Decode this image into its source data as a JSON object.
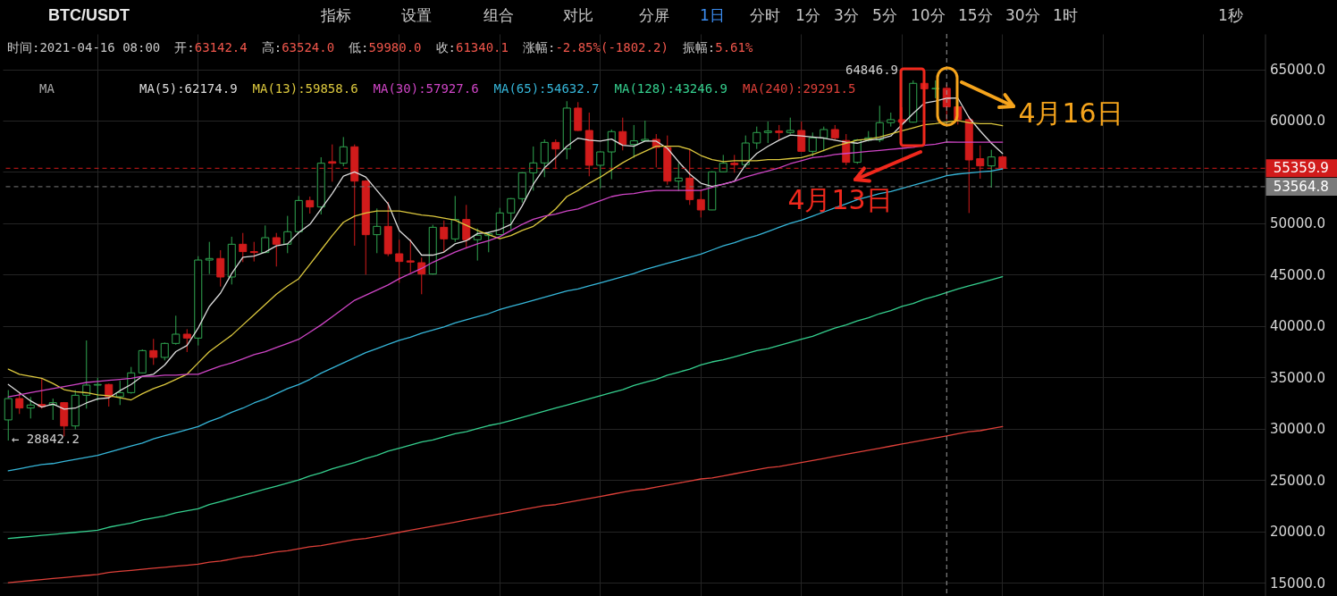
{
  "chart_data": {
    "type": "candlestick",
    "title": "BTC/USDT",
    "categories": [
      null,
      null,
      null,
      null,
      null,
      null,
      null,
      null,
      null,
      null,
      null,
      null,
      null,
      null,
      null,
      null,
      null,
      null,
      null,
      null,
      null,
      null,
      null,
      null,
      null,
      null,
      null,
      null,
      null,
      null,
      null,
      null,
      null,
      null,
      null,
      null,
      null,
      null,
      null,
      null,
      null,
      null,
      null,
      null,
      null,
      null,
      null,
      null,
      null,
      null,
      null,
      null,
      null,
      null,
      null,
      null,
      null,
      null,
      null,
      null,
      null,
      null,
      null,
      null,
      null,
      null,
      null,
      null,
      null,
      null,
      null,
      null,
      null,
      null,
      null,
      null,
      null,
      null,
      null,
      null,
      null,
      null,
      null,
      null,
      null,
      null,
      null,
      null,
      null,
      null,
      null,
      null,
      null,
      null,
      null,
      null,
      null,
      null,
      null,
      null,
      null,
      null,
      null,
      null,
      null,
      null,
      null,
      null,
      null,
      null,
      null,
      null,
      null
    ],
    "ohlc": [
      [
        30850,
        33750,
        28842.2,
        32930
      ],
      [
        32930,
        33510,
        31430,
        32010
      ],
      [
        32010,
        33080,
        30990,
        32300
      ],
      [
        32350,
        34850,
        31950,
        32150
      ],
      [
        32300,
        32930,
        30850,
        32530
      ],
      [
        32530,
        32590,
        29250,
        30260
      ],
      [
        30260,
        33750,
        29920,
        33250
      ],
      [
        33250,
        38590,
        31950,
        34240
      ],
      [
        34240,
        34960,
        32730,
        34300
      ],
      [
        34300,
        34380,
        32150,
        33110
      ],
      [
        33110,
        34670,
        32300,
        33510
      ],
      [
        33510,
        36010,
        33400,
        35430
      ],
      [
        35430,
        37720,
        35370,
        37600
      ],
      [
        37600,
        38740,
        36210,
        36940
      ],
      [
        36940,
        38390,
        36650,
        38300
      ],
      [
        38300,
        41000,
        38180,
        39200
      ],
      [
        39200,
        39690,
        37460,
        38820
      ],
      [
        38820,
        46800,
        38100,
        46420
      ],
      [
        46420,
        48190,
        45060,
        46570
      ],
      [
        46570,
        47380,
        43840,
        44770
      ],
      [
        44770,
        48690,
        44040,
        47960
      ],
      [
        47960,
        49060,
        46220,
        47240
      ],
      [
        47240,
        48190,
        46280,
        47150
      ],
      [
        47150,
        49790,
        47090,
        48600
      ],
      [
        48600,
        49060,
        45790,
        47960
      ],
      [
        47960,
        50720,
        47090,
        49180
      ],
      [
        49180,
        52660,
        49060,
        52220
      ],
      [
        52220,
        52600,
        50950,
        51590
      ],
      [
        51590,
        56430,
        50860,
        55850
      ],
      [
        56000,
        57680,
        54050,
        55850
      ],
      [
        55850,
        58400,
        55560,
        57450
      ],
      [
        57450,
        57680,
        47820,
        54110
      ],
      [
        54110,
        54200,
        45000,
        48890
      ],
      [
        48890,
        51440,
        47090,
        49700
      ],
      [
        49700,
        52080,
        46800,
        47030
      ],
      [
        47030,
        48400,
        44190,
        46280
      ],
      [
        46340,
        48450,
        45200,
        46220
      ],
      [
        46160,
        46660,
        43090,
        45060
      ],
      [
        45060,
        49850,
        45000,
        49610
      ],
      [
        49610,
        50280,
        47150,
        48480
      ],
      [
        48480,
        52660,
        48190,
        50370
      ],
      [
        50370,
        51790,
        47530,
        48400
      ],
      [
        48400,
        49500,
        46370,
        48830
      ],
      [
        48800,
        49180,
        47180,
        48980
      ],
      [
        48900,
        51500,
        48830,
        51010
      ],
      [
        51010,
        52460,
        49410,
        52400
      ],
      [
        52400,
        54980,
        52020,
        54920
      ],
      [
        54920,
        57480,
        53180,
        55880
      ],
      [
        55880,
        58170,
        54490,
        57880
      ],
      [
        57880,
        58170,
        55270,
        57240
      ],
      [
        57240,
        61890,
        56230,
        61220
      ],
      [
        61220,
        61800,
        58980,
        59040
      ],
      [
        59040,
        60780,
        54580,
        55650
      ],
      [
        55650,
        57000,
        53410,
        56950
      ],
      [
        56950,
        59130,
        54290,
        58930
      ],
      [
        58930,
        60290,
        57100,
        57680
      ],
      [
        57680,
        59570,
        56370,
        58030
      ],
      [
        58030,
        60000,
        57970,
        58170
      ],
      [
        58170,
        58690,
        55450,
        57390
      ],
      [
        57390,
        58550,
        53760,
        54110
      ],
      [
        54110,
        55850,
        53120,
        54400
      ],
      [
        54400,
        57240,
        51790,
        52310
      ],
      [
        52310,
        53240,
        50570,
        51300
      ],
      [
        51300,
        55070,
        51280,
        55010
      ],
      [
        55010,
        56660,
        54980,
        55850
      ],
      [
        55850,
        56660,
        54920,
        55710
      ],
      [
        55710,
        58550,
        55450,
        57820
      ],
      [
        57820,
        59420,
        57240,
        58840
      ],
      [
        58840,
        59910,
        57820,
        58980
      ],
      [
        58980,
        59570,
        58060,
        58840
      ],
      [
        58840,
        60290,
        58690,
        59040
      ],
      [
        59040,
        59910,
        56950,
        57010
      ],
      [
        57010,
        58840,
        56520,
        58320
      ],
      [
        58320,
        59420,
        57010,
        59130
      ],
      [
        59130,
        59570,
        58110,
        58320
      ],
      [
        58060,
        58690,
        55650,
        55940
      ],
      [
        55940,
        58200,
        55790,
        58110
      ],
      [
        58110,
        58980,
        57970,
        58320
      ],
      [
        58120,
        61450,
        57900,
        59800
      ],
      [
        59800,
        60780,
        59420,
        60090
      ],
      [
        60090,
        61300,
        59400,
        59850
      ],
      [
        59850,
        63920,
        59800,
        63630
      ],
      [
        63630,
        64846.9,
        61300,
        63100
      ],
      [
        63100,
        63920,
        62180,
        63140
      ],
      [
        63142.4,
        63524.0,
        59980.0,
        61340.1
      ],
      [
        61340,
        61500,
        59620,
        60090
      ],
      [
        60090,
        60440,
        51000,
        56170
      ],
      [
        56290,
        57590,
        54340,
        55590
      ],
      [
        55590,
        57160,
        53470,
        56460
      ],
      [
        56460,
        56600,
        55200,
        55359.9
      ],
      null,
      null,
      null,
      null,
      null,
      null,
      null,
      null,
      null,
      null,
      null,
      null,
      null,
      null,
      null,
      null,
      null,
      null,
      null,
      null,
      null,
      null,
      null
    ],
    "colors": [
      "#30a651",
      "#d11b1b",
      "#30a651",
      "#d11b1b",
      "#30a651",
      "#d11b1b",
      "#30a651",
      "#30a651",
      "#30a651",
      "#d11b1b",
      "#30a651",
      "#30a651",
      "#30a651",
      "#d11b1b",
      "#30a651",
      "#30a651",
      "#d11b1b",
      "#30a651",
      "#30a651",
      "#d11b1b",
      "#30a651",
      "#d11b1b",
      "#d11b1b",
      "#30a651",
      "#d11b1b",
      "#30a651",
      "#30a651",
      "#d11b1b",
      "#30a651",
      "#d11b1b",
      "#30a651",
      "#d11b1b",
      "#d11b1b",
      "#30a651",
      "#d11b1b",
      "#d11b1b",
      "#d11b1b",
      "#d11b1b",
      "#30a651",
      "#d11b1b",
      "#30a651",
      "#d11b1b",
      "#30a651",
      "#30a651",
      "#30a651",
      "#30a651",
      "#30a651",
      "#30a651",
      "#30a651",
      "#d11b1b",
      "#30a651",
      "#d11b1b",
      "#d11b1b",
      "#30a651",
      "#30a651",
      "#d11b1b",
      "#30a651",
      "#30a651",
      "#d11b1b",
      "#d11b1b",
      "#30a651",
      "#d11b1b",
      "#d11b1b",
      "#30a651",
      "#30a651",
      "#d11b1b",
      "#30a651",
      "#30a651",
      "#30a651",
      "#d11b1b",
      "#30a651",
      "#d11b1b",
      "#30a651",
      "#30a651",
      "#d11b1b",
      "#d11b1b",
      "#30a651",
      "#30a651",
      "#30a651",
      "#30a651",
      "#d11b1b",
      "#30a651",
      "#d11b1b",
      "#30a651",
      "#d11b1b",
      "#d11b1b",
      "#d11b1b",
      "#d11b1b",
      "#30a651",
      "#d11b1b",
      null,
      null,
      null,
      null,
      null,
      null,
      null,
      null,
      null,
      null,
      null,
      null,
      null,
      null,
      null,
      null,
      null,
      null,
      null,
      null,
      null,
      null,
      null
    ],
    "series": [
      {
        "type": "line",
        "name": "MA(5):62174.9",
        "color": "#dcdcdc",
        "values": [
          34300,
          33500,
          32700,
          32100,
          32400,
          31900,
          32000,
          32500,
          32900,
          33000,
          33700,
          34300,
          35100,
          35300,
          36200,
          37500,
          38100,
          39800,
          41900,
          43200,
          45100,
          46700,
          46800,
          47200,
          47800,
          48000,
          49100,
          49900,
          51400,
          52900,
          54600,
          55000,
          54500,
          53200,
          51900,
          49300,
          48300,
          46900,
          46900,
          47200,
          48000,
          48300,
          49000,
          49100,
          49400,
          49900,
          51700,
          53800,
          55400,
          56400,
          57500,
          58300,
          58100,
          58000,
          58200,
          57600,
          57500,
          58000,
          58000,
          57300,
          56000,
          54800,
          53900,
          53600,
          53800,
          54100,
          55700,
          56800,
          57500,
          58100,
          58600,
          58500,
          58400,
          58300,
          58100,
          57900,
          57800,
          58100,
          58200,
          58500,
          59600,
          60700,
          61700,
          61900,
          62174.9,
          62200,
          60300,
          59000,
          57800,
          56800,
          null,
          null,
          null,
          null,
          null,
          null,
          null,
          null,
          null,
          null,
          null,
          null,
          null,
          null,
          null,
          null,
          null,
          null,
          null,
          null,
          null,
          null,
          null
        ]
      },
      {
        "type": "line",
        "name": "MA(13):59858.6",
        "color": "#dcc83e",
        "values": [
          35800,
          35300,
          35100,
          34900,
          34400,
          33800,
          33600,
          33500,
          33300,
          33200,
          33000,
          32800,
          33400,
          33900,
          34300,
          34800,
          35300,
          36400,
          37500,
          38300,
          39100,
          40100,
          41100,
          42100,
          43100,
          43900,
          44600,
          46000,
          47400,
          48800,
          50100,
          50700,
          51000,
          51200,
          51200,
          51200,
          51000,
          50800,
          50700,
          50500,
          50300,
          49800,
          49300,
          48900,
          48500,
          48800,
          49300,
          49700,
          50500,
          51400,
          52600,
          53200,
          53900,
          54500,
          55200,
          55900,
          56500,
          57000,
          57500,
          57500,
          57500,
          57200,
          56600,
          56200,
          56000,
          56100,
          56100,
          56100,
          56200,
          56200,
          56300,
          56400,
          56700,
          57100,
          57500,
          57800,
          58100,
          58200,
          58400,
          58700,
          59000,
          59300,
          59600,
          59700,
          59858.6,
          60000,
          59800,
          59700,
          59700,
          59500,
          null,
          null,
          null,
          null,
          null,
          null,
          null,
          null,
          null,
          null,
          null,
          null,
          null,
          null,
          null,
          null,
          null,
          null,
          null,
          null,
          null,
          null,
          null
        ]
      },
      {
        "type": "line",
        "name": "MA(30):57927.6",
        "color": "#cf45c6",
        "values": [
          33100,
          33300,
          33500,
          33700,
          33900,
          34100,
          34300,
          34500,
          34600,
          34700,
          34800,
          34900,
          35100,
          35100,
          35200,
          35200,
          35300,
          35300,
          35700,
          36100,
          36400,
          36800,
          37200,
          37500,
          37900,
          38300,
          38700,
          39400,
          40100,
          40900,
          41700,
          42500,
          43000,
          43500,
          44000,
          44600,
          45100,
          45600,
          46200,
          46700,
          47200,
          47600,
          48000,
          48300,
          48700,
          49300,
          49900,
          50400,
          50700,
          50900,
          51200,
          51400,
          51800,
          52200,
          52600,
          52800,
          52900,
          53100,
          53200,
          53200,
          53200,
          53200,
          53200,
          53500,
          53800,
          54100,
          54500,
          54800,
          55100,
          55400,
          55800,
          56100,
          56400,
          56500,
          56700,
          56800,
          56900,
          57000,
          57100,
          57200,
          57300,
          57400,
          57600,
          57700,
          57927.6,
          57900,
          57900,
          57900,
          57900,
          57900,
          null,
          null,
          null,
          null,
          null,
          null,
          null,
          null,
          null,
          null,
          null,
          null,
          null,
          null,
          null,
          null,
          null,
          null,
          null,
          null,
          null,
          null,
          null
        ]
      },
      {
        "type": "line",
        "name": "MA(65):54632.7",
        "color": "#36b6d9",
        "values": [
          25900,
          26100,
          26300,
          26500,
          26600,
          26800,
          27000,
          27200,
          27400,
          27700,
          28000,
          28300,
          28600,
          29000,
          29300,
          29600,
          29900,
          30200,
          30700,
          31100,
          31600,
          32000,
          32500,
          32900,
          33400,
          33900,
          34300,
          34800,
          35400,
          35900,
          36400,
          36900,
          37400,
          37800,
          38200,
          38600,
          38900,
          39300,
          39600,
          39900,
          40300,
          40600,
          40900,
          41200,
          41600,
          41900,
          42200,
          42500,
          42800,
          43100,
          43400,
          43600,
          43900,
          44200,
          44500,
          44800,
          45100,
          45500,
          45800,
          46100,
          46400,
          46700,
          47000,
          47400,
          47800,
          48100,
          48500,
          48800,
          49200,
          49600,
          50000,
          50300,
          50700,
          51100,
          51500,
          51900,
          52300,
          52600,
          52900,
          53100,
          53400,
          53700,
          54000,
          54300,
          54632.7,
          54800,
          54900,
          55000,
          55100,
          55300,
          null,
          null,
          null,
          null,
          null,
          null,
          null,
          null,
          null,
          null,
          null,
          null,
          null,
          null,
          null,
          null,
          null,
          null,
          null,
          null,
          null,
          null,
          null
        ]
      },
      {
        "type": "line",
        "name": "MA(128):43246.9",
        "color": "#35cf8e",
        "values": [
          19300,
          19400,
          19500,
          19600,
          19700,
          19800,
          19900,
          20000,
          20100,
          20400,
          20600,
          20800,
          21100,
          21300,
          21500,
          21800,
          22000,
          22200,
          22600,
          22900,
          23200,
          23500,
          23800,
          24100,
          24400,
          24700,
          25000,
          25400,
          25700,
          26100,
          26400,
          26700,
          27100,
          27400,
          27800,
          28100,
          28400,
          28700,
          28900,
          29200,
          29500,
          29700,
          30000,
          30300,
          30500,
          30800,
          31100,
          31400,
          31700,
          32000,
          32300,
          32600,
          32900,
          33200,
          33500,
          33800,
          34200,
          34500,
          34800,
          35200,
          35500,
          35800,
          36200,
          36500,
          36700,
          37000,
          37300,
          37600,
          37800,
          38100,
          38400,
          38700,
          39000,
          39400,
          39800,
          40100,
          40500,
          40800,
          41200,
          41500,
          41900,
          42200,
          42600,
          42900,
          43246.9,
          43600,
          43900,
          44200,
          44500,
          44800,
          null,
          null,
          null,
          null,
          null,
          null,
          null,
          null,
          null,
          null,
          null,
          null,
          null,
          null,
          null,
          null,
          null,
          null,
          null,
          null,
          null,
          null,
          null
        ]
      },
      {
        "type": "line",
        "name": "MA(240):29291.5",
        "color": "#de4039",
        "values": [
          15000,
          15100,
          15200,
          15300,
          15400,
          15500,
          15600,
          15700,
          15800,
          16000,
          16100,
          16200,
          16300,
          16400,
          16500,
          16600,
          16700,
          16800,
          17000,
          17100,
          17300,
          17500,
          17600,
          17800,
          18000,
          18100,
          18300,
          18500,
          18600,
          18800,
          19000,
          19200,
          19300,
          19500,
          19700,
          19900,
          20100,
          20300,
          20500,
          20700,
          20900,
          21100,
          21300,
          21500,
          21700,
          21900,
          22100,
          22300,
          22500,
          22600,
          22800,
          23000,
          23200,
          23400,
          23600,
          23800,
          24000,
          24100,
          24300,
          24500,
          24700,
          24900,
          25100,
          25200,
          25400,
          25600,
          25800,
          26000,
          26200,
          26300,
          26500,
          26700,
          26900,
          27100,
          27300,
          27500,
          27700,
          27900,
          28100,
          28300,
          28500,
          28700,
          28900,
          29100,
          29291.5,
          29500,
          29700,
          29800,
          30000,
          30200,
          null,
          null,
          null,
          null,
          null,
          null,
          null,
          null,
          null,
          null,
          null,
          null,
          null,
          null,
          null,
          null,
          null,
          null,
          null,
          null,
          null,
          null,
          null
        ]
      }
    ],
    "ylim": [
      13700,
      68440
    ],
    "yticks": [
      {
        "value": 15000,
        "label": "15000.0"
      },
      {
        "value": 20000,
        "label": "20000.0"
      },
      {
        "value": 25000,
        "label": "25000.0"
      },
      {
        "value": 30000,
        "label": "30000.0"
      },
      {
        "value": 35000,
        "label": "35000.0"
      },
      {
        "value": 40000,
        "label": "40000.0"
      },
      {
        "value": 45000,
        "label": "45000.0"
      },
      {
        "value": 50000,
        "label": "50000.0"
      },
      {
        "value": 55000,
        "label": null
      },
      {
        "value": 60000,
        "label": "60000.0"
      },
      {
        "value": 65000,
        "label": "65000.0"
      }
    ],
    "tick_labels": "y",
    "grid": true,
    "ref_lines": [
      {
        "axis": "y",
        "value": 55359.9,
        "label": "55359.9",
        "color": "#d11b1b",
        "line_style": "dashed"
      },
      {
        "axis": "y",
        "value": 53564.8,
        "label": "53564.8",
        "color": "#7a7a7a",
        "line_style": "dashed"
      }
    ],
    "annotations": [
      "指标",
      "设置",
      "组合",
      "对比",
      "分屏",
      "1日",
      "分时",
      "1分",
      "3分",
      "5分",
      "10分",
      "15分",
      "30分",
      "1时",
      "1秒",
      "时间:2021-04-16 08:00",
      "开:63142.4",
      "高:63524.0",
      "低:59980.0",
      "收:61340.1",
      "涨幅:-2.85%(-1802.2)",
      "振幅:5.61%",
      "MA",
      "← 28842.2",
      "64846.9",
      "4月13日",
      "4月16日"
    ]
  }
}
